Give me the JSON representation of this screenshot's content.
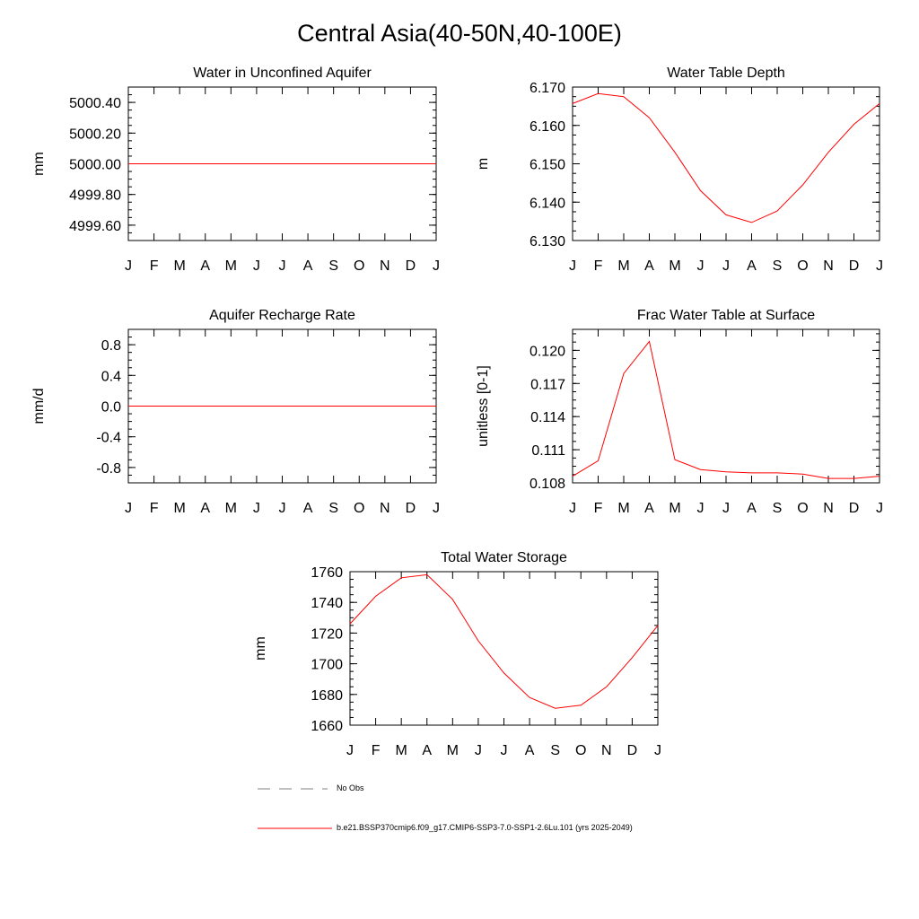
{
  "page": {
    "title": "Central Asia(40-50N,40-100E)"
  },
  "colors": {
    "series": "#ff0000",
    "axis": "#000000",
    "obs": "#808080"
  },
  "legend": {
    "obs_label": "No Obs",
    "model_label": "b.e21.BSSP370cmip6.f09_g17.CMIP6-SSP3-7.0-SSP1-2.6Lu.101 (yrs 2025-2049)"
  },
  "chart_data": [
    {
      "type": "line",
      "title": "Water in Unconfined Aquifer",
      "ylabel": "mm",
      "categories": [
        "J",
        "F",
        "M",
        "A",
        "M",
        "J",
        "J",
        "A",
        "S",
        "O",
        "N",
        "D",
        "J"
      ],
      "ylim": [
        4999.5,
        5000.5
      ],
      "yticks": [
        4999.6,
        4999.8,
        5000.0,
        5000.2,
        5000.4
      ],
      "ytick_labels": [
        "4999.60",
        "4999.80",
        "5000.00",
        "5000.20",
        "5000.40"
      ],
      "yminor": 0.05,
      "values": [
        5000.0,
        5000.0,
        5000.0,
        5000.0,
        5000.0,
        5000.0,
        5000.0,
        5000.0,
        5000.0,
        5000.0,
        5000.0,
        5000.0,
        5000.0
      ]
    },
    {
      "type": "line",
      "title": "Water Table Depth",
      "ylabel": "m",
      "categories": [
        "J",
        "F",
        "M",
        "A",
        "M",
        "J",
        "J",
        "A",
        "S",
        "O",
        "N",
        "D",
        "J"
      ],
      "ylim": [
        6.13,
        6.17
      ],
      "yticks": [
        6.13,
        6.14,
        6.15,
        6.16,
        6.17
      ],
      "ytick_labels": [
        "6.130",
        "6.140",
        "6.150",
        "6.160",
        "6.170"
      ],
      "yminor": 0.0025,
      "values": [
        6.1657,
        6.1683,
        6.1675,
        6.162,
        6.153,
        6.143,
        6.1367,
        6.1347,
        6.1377,
        6.1445,
        6.153,
        6.1603,
        6.1657
      ]
    },
    {
      "type": "line",
      "title": "Aquifer Recharge Rate",
      "ylabel": "mm/d",
      "categories": [
        "J",
        "F",
        "M",
        "A",
        "M",
        "J",
        "J",
        "A",
        "S",
        "O",
        "N",
        "D",
        "J"
      ],
      "ylim": [
        -1.0,
        1.0
      ],
      "yticks": [
        -0.8,
        -0.4,
        0.0,
        0.4,
        0.8
      ],
      "ytick_labels": [
        "-0.8",
        "-0.4",
        "0.0",
        "0.4",
        "0.8"
      ],
      "yminor": 0.1,
      "values": [
        0,
        0,
        0,
        0,
        0,
        0,
        0,
        0,
        0,
        0,
        0,
        0,
        0
      ]
    },
    {
      "type": "line",
      "title": "Frac Water Table at Surface",
      "ylabel": "unitless [0-1]",
      "categories": [
        "J",
        "F",
        "M",
        "A",
        "M",
        "J",
        "J",
        "A",
        "S",
        "O",
        "N",
        "D",
        "J"
      ],
      "ylim": [
        0.108,
        0.1219
      ],
      "yticks": [
        0.108,
        0.111,
        0.114,
        0.117,
        0.12
      ],
      "ytick_labels": [
        "0.108",
        "0.111",
        "0.114",
        "0.117",
        "0.120"
      ],
      "yminor": 0.00075,
      "values": [
        0.1086,
        0.11,
        0.1179,
        0.1208,
        0.1101,
        0.1092,
        0.109,
        0.1089,
        0.1089,
        0.1088,
        0.1084,
        0.1084,
        0.1086
      ]
    },
    {
      "type": "line",
      "title": "Total Water Storage",
      "ylabel": "mm",
      "categories": [
        "J",
        "F",
        "M",
        "A",
        "M",
        "J",
        "J",
        "A",
        "S",
        "O",
        "N",
        "D",
        "J"
      ],
      "ylim": [
        1660,
        1760
      ],
      "yticks": [
        1660,
        1680,
        1700,
        1720,
        1740,
        1760
      ],
      "ytick_labels": [
        "1660",
        "1680",
        "1700",
        "1720",
        "1740",
        "1760"
      ],
      "yminor": 5,
      "values": [
        1726,
        1744,
        1756,
        1758,
        1742,
        1715,
        1694,
        1678,
        1671,
        1673,
        1685,
        1704,
        1725
      ]
    }
  ]
}
